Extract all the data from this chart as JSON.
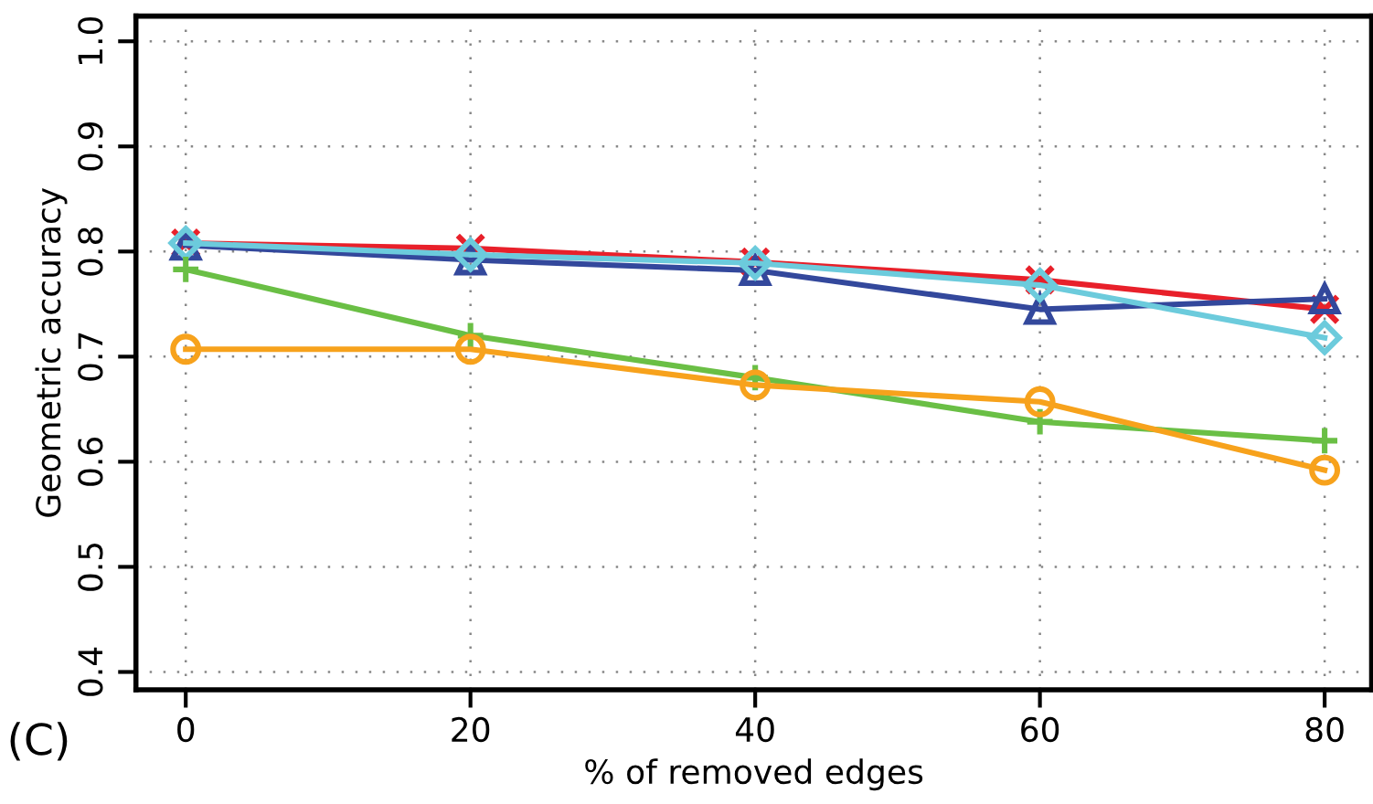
{
  "chart_data": {
    "type": "line",
    "xlabel": "% of removed edges",
    "ylabel": "Geometric accuracy",
    "x": [
      0,
      20,
      40,
      60,
      80
    ],
    "series": [
      {
        "color": "#e8202a",
        "marker": "cross",
        "values": [
          0.808,
          0.803,
          0.79,
          0.773,
          0.745
        ]
      },
      {
        "color": "#33489c",
        "marker": "triangle",
        "values": [
          0.806,
          0.792,
          0.782,
          0.745,
          0.755
        ]
      },
      {
        "color": "#6ccbdc",
        "marker": "diamond",
        "values": [
          0.808,
          0.797,
          0.789,
          0.768,
          0.718
        ]
      },
      {
        "color": "#6abf45",
        "marker": "plus",
        "values": [
          0.783,
          0.72,
          0.68,
          0.638,
          0.62
        ]
      },
      {
        "color": "#f7a21c",
        "marker": "circle",
        "values": [
          0.707,
          0.707,
          0.673,
          0.657,
          0.592
        ]
      }
    ],
    "xlim": [
      -3.5,
      83.3
    ],
    "ylim": [
      0.383,
      1.024
    ],
    "xticks": [
      0,
      20,
      40,
      60,
      80
    ],
    "yticks": [
      {
        "value": 0.4,
        "label": "0.4"
      },
      {
        "value": 0.5,
        "label": "0.5"
      },
      {
        "value": 0.6,
        "label": "0.6"
      },
      {
        "value": 0.7,
        "label": "0.7"
      },
      {
        "value": 0.8,
        "label": "0.8"
      },
      {
        "value": 0.9,
        "label": "0.9"
      },
      {
        "value": 1.0,
        "label": "1.0"
      }
    ],
    "grid": true,
    "line_style": "solid",
    "annotations": [
      "(C)"
    ]
  }
}
